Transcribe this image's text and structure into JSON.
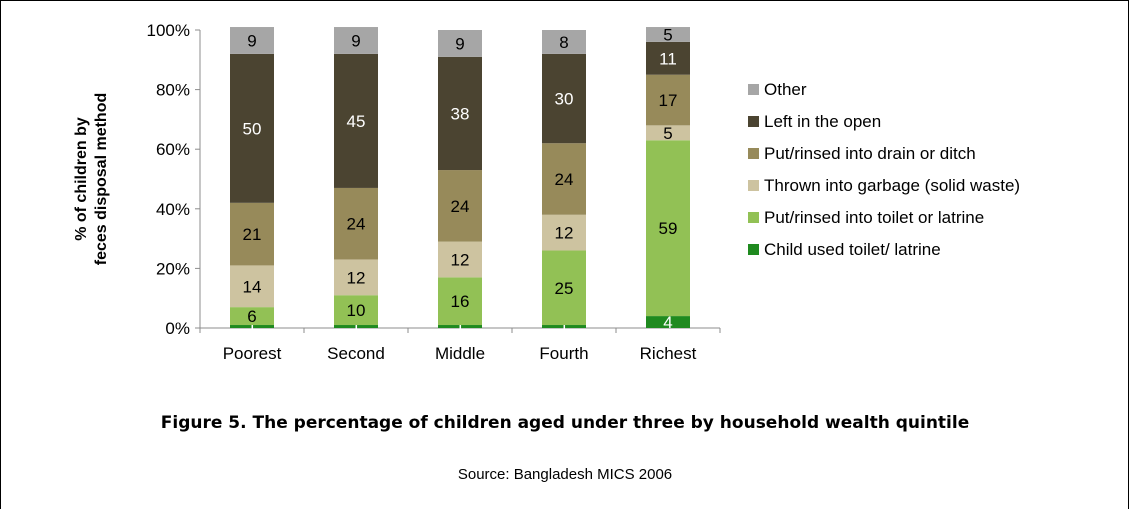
{
  "chart_data": {
    "type": "bar",
    "stacked": true,
    "percent_stacked": true,
    "categories": [
      "Poorest",
      "Second",
      "Middle",
      "Fourth",
      "Richest"
    ],
    "ylabel": "% of children by feces disposal method",
    "ylim": [
      0,
      100
    ],
    "yticks": [
      "0%",
      "20%",
      "40%",
      "60%",
      "80%",
      "100%"
    ],
    "legend_position": "right",
    "series": [
      {
        "name": "Child used toilet/ latrine",
        "color": "#1f8a1f",
        "values": [
          1,
          1,
          1,
          1,
          4
        ]
      },
      {
        "name": "Put/rinsed into toilet or latrine",
        "color": "#92c155",
        "values": [
          6,
          10,
          16,
          25,
          59
        ]
      },
      {
        "name": "Thrown into garbage (solid waste)",
        "color": "#cdc3a0",
        "values": [
          14,
          12,
          12,
          12,
          5
        ]
      },
      {
        "name": "Put/rinsed into drain or ditch",
        "color": "#978a5a",
        "values": [
          21,
          24,
          24,
          24,
          17
        ]
      },
      {
        "name": "Left in the open",
        "color": "#4b4431",
        "values": [
          50,
          45,
          38,
          30,
          11
        ]
      },
      {
        "name": "Other",
        "color": "#a6a6a6",
        "values": [
          9,
          9,
          9,
          8,
          5
        ]
      }
    ]
  },
  "caption": "Figure 5. The percentage of children aged under three by household wealth quintile",
  "source": "Source: Bangladesh MICS 2006"
}
